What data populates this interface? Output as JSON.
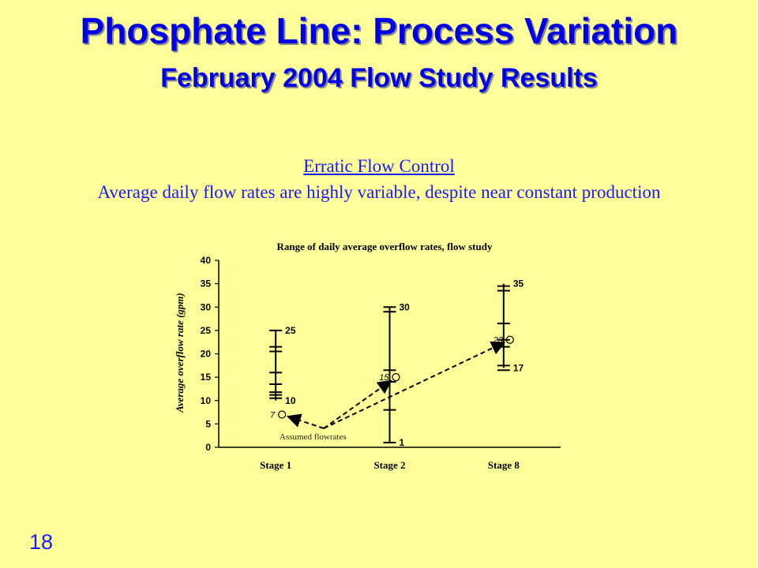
{
  "slide": {
    "title": "Phosphate Line: Process Variation",
    "subtitle": "February 2004 Flow Study Results",
    "caption_heading": "Erratic Flow Control",
    "caption_text": "Average daily flow rates are highly variable, despite near constant production",
    "slide_number": "18"
  },
  "colors": {
    "background": "#ffff99",
    "title": "#0000e6",
    "text": "#1a1aff",
    "chart_ink": "#000000"
  },
  "chart_data": {
    "type": "range",
    "title": "Range of daily average overflow rates, flow study",
    "xlabel": "",
    "ylabel": "Average overflow rate (gpm)",
    "ylim": [
      0,
      40
    ],
    "yticks": [
      0,
      5,
      10,
      15,
      20,
      25,
      30,
      35,
      40
    ],
    "categories": [
      "Stage 1",
      "Stage 2",
      "Stage 8"
    ],
    "ranges": [
      {
        "category": "Stage 1",
        "min": 10,
        "max": 25,
        "min_label": "10",
        "max_label": "25",
        "daily_values": [
          10.5,
          11.2,
          11.8,
          13.5,
          16,
          20.5,
          21.5,
          25
        ]
      },
      {
        "category": "Stage 2",
        "min": 1,
        "max": 30,
        "min_label": "1",
        "max_label": "30",
        "daily_values": [
          1,
          8,
          14,
          16.5,
          29,
          30
        ]
      },
      {
        "category": "Stage 8",
        "min": 17,
        "max": 35,
        "min_label": "17",
        "max_label": "35",
        "daily_values": [
          16.5,
          17.5,
          21.5,
          23,
          26.5,
          33.5,
          34.5
        ]
      }
    ],
    "assumed": [
      {
        "category": "Stage 1",
        "value": 7,
        "label": "7"
      },
      {
        "category": "Stage 2",
        "value": 15,
        "label": "15"
      },
      {
        "category": "Stage 8",
        "value": 23,
        "label": "23"
      }
    ],
    "annotation": "Assumed flowrates",
    "grid": false,
    "legend": "none"
  }
}
